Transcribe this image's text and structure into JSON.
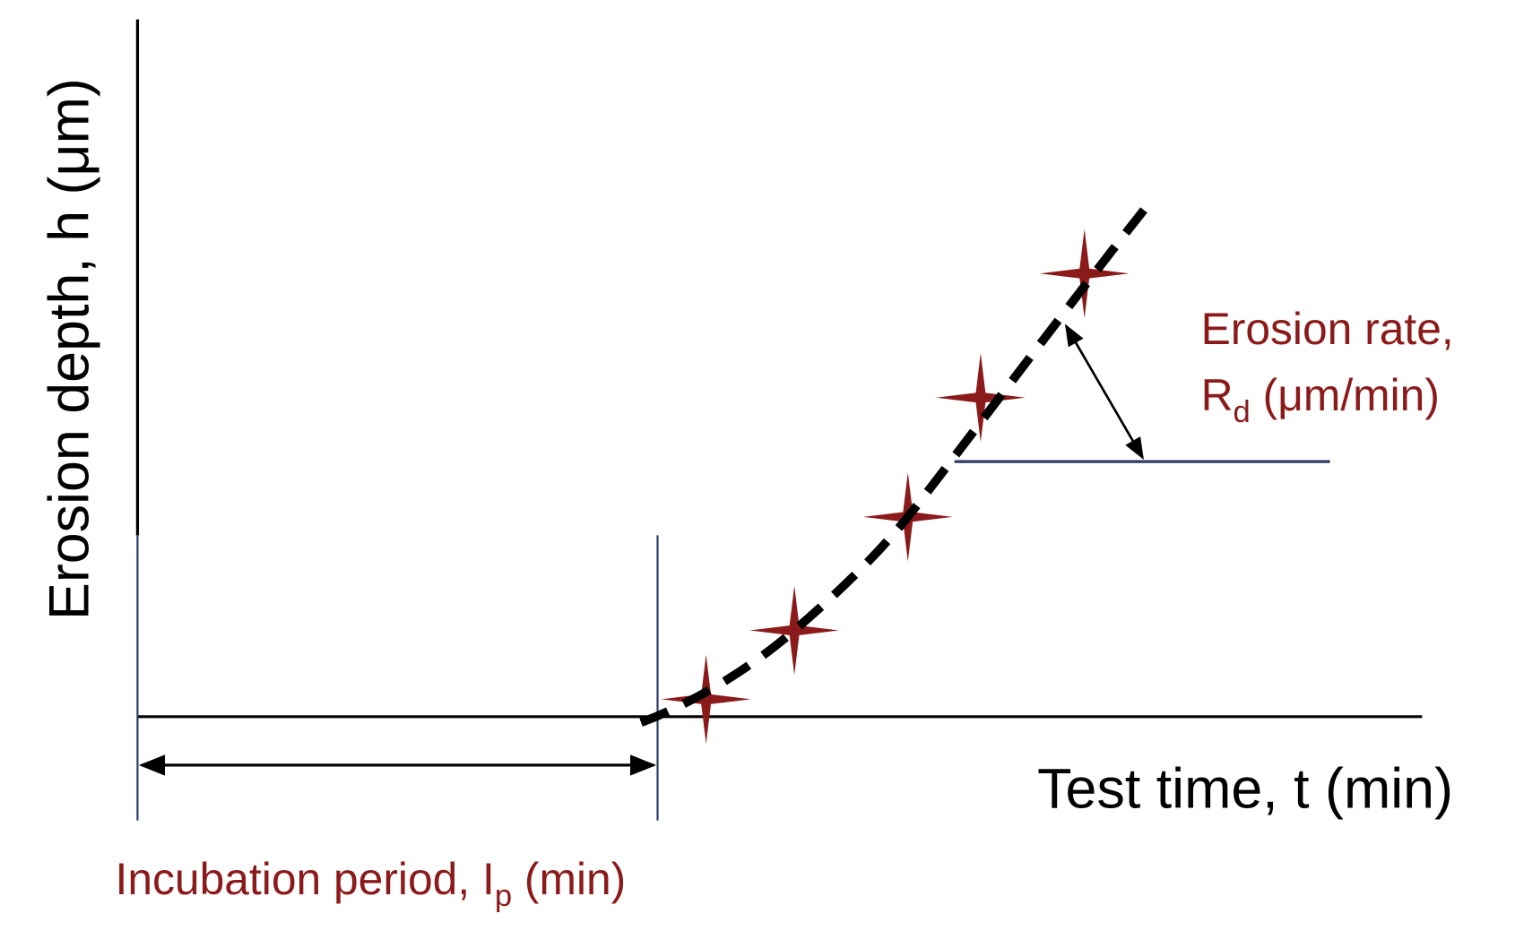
{
  "diagram": {
    "y_axis_label": "Erosion depth, h (μm)",
    "x_axis_label": "Test time, t (min)",
    "erosion_rate_label": {
      "line1": "Erosion rate,",
      "line2_main": "R",
      "line2_sub": "d",
      "line2_rest": " (μm/min)"
    },
    "incubation_label": {
      "main": "Incubation period, I",
      "sub": "p",
      "rest": " (min)"
    }
  }
}
